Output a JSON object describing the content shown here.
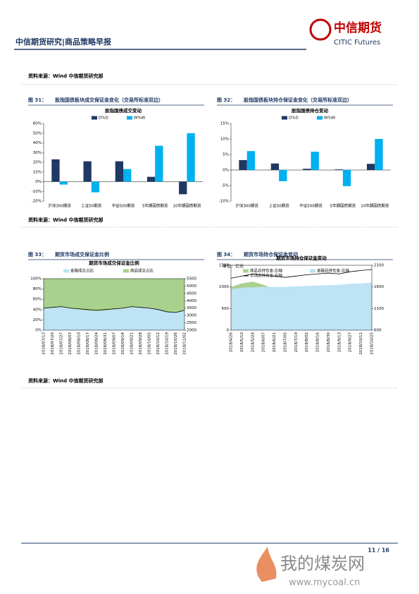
{
  "header": {
    "title": "中信期货研究|商品策略早报",
    "logo_cn": "中信期货",
    "logo_en": "CITIC Futures"
  },
  "sources": [
    "资料来源：Wind 中信期货研究部",
    "资料来源：Wind 中信期货研究部",
    "资料来源：Wind 中信期货研究部"
  ],
  "footer": {
    "page": "11 / 16"
  },
  "watermark": {
    "name": "我的煤炭网",
    "url": "www.mycoal.cn"
  },
  "chart_data": [
    {
      "type": "bar",
      "figure": "图 31：",
      "title": "股指国债板块成交保证金变化（交易所标准双边）",
      "subtitle": "股指国债成交变动",
      "categories": [
        "沪深300期货",
        "上证50期货",
        "中证500期货",
        "5年期国债期货",
        "10年期国债期货"
      ],
      "series": [
        {
          "name": "D%D",
          "color": "#1f3864",
          "values": [
            23,
            21,
            21,
            5,
            -13
          ]
        },
        {
          "name": "W%W",
          "color": "#00b0f0",
          "values": [
            -3,
            -11,
            13,
            37,
            50
          ]
        }
      ],
      "ylim": [
        -20,
        60
      ],
      "yticks": [
        {
          "value": -20,
          "label": "-20%"
        },
        {
          "value": -10,
          "label": "-10%"
        },
        {
          "value": 0,
          "label": "0%"
        },
        {
          "value": 10,
          "label": "10%"
        },
        {
          "value": 20,
          "label": "20%"
        },
        {
          "value": 30,
          "label": "30%"
        },
        {
          "value": 40,
          "label": "40%"
        },
        {
          "value": 50,
          "label": "50%"
        },
        {
          "value": 60,
          "label": "60%"
        }
      ]
    },
    {
      "type": "bar",
      "figure": "图 32：",
      "title": "股指国债板块持仓保证金变化（交易所标准双边）",
      "subtitle": "股指国债持仓变动",
      "categories": [
        "沪深300期货",
        "上证50期货",
        "中证500期货",
        "5年期国债期货",
        "10年期国债期货"
      ],
      "series": [
        {
          "name": "D%D",
          "color": "#1f3864",
          "values": [
            3.2,
            2.1,
            0.4,
            0.2,
            2.0
          ]
        },
        {
          "name": "W%W",
          "color": "#00b0f0",
          "values": [
            6.1,
            -3.6,
            5.9,
            -5.2,
            10.0
          ]
        }
      ],
      "ylim": [
        -10,
        15
      ],
      "yticks": [
        {
          "value": -10,
          "label": "-10%"
        },
        {
          "value": -5,
          "label": "-5%"
        },
        {
          "value": 0,
          "label": "0%"
        },
        {
          "value": 5,
          "label": "5%"
        },
        {
          "value": 10,
          "label": "10%"
        },
        {
          "value": 15,
          "label": "15%"
        }
      ]
    },
    {
      "type": "area",
      "figure": "图 33：",
      "title": "期货市场成交保证金比例",
      "subtitle": "期货市场成交保证金比例",
      "stacked": true,
      "categories": [
        "2018/07/13",
        "2018/07/20",
        "2018/07/27",
        "2018/08/03",
        "2018/08/10",
        "2018/08/17",
        "2018/08/24",
        "2018/08/31",
        "2018/09/07",
        "2018/09/14",
        "2018/09/21",
        "2018/09/28",
        "2018/10/05",
        "2018/10/12",
        "2018/10/19",
        "2018/10/26",
        "2018/11/02"
      ],
      "series": [
        {
          "name": "金融成交占比",
          "kind": "area",
          "color": "#bde3f5",
          "values": [
            42,
            44,
            45,
            42,
            40,
            38,
            37,
            38,
            40,
            42,
            45,
            44,
            43,
            40,
            35,
            34,
            38
          ]
        },
        {
          "name": "商品成交占比",
          "kind": "area",
          "color": "#a9d18e",
          "values": [
            58,
            56,
            55,
            58,
            60,
            62,
            63,
            62,
            60,
            58,
            55,
            56,
            57,
            60,
            65,
            66,
            62
          ]
        },
        {
          "kind": "line",
          "axis": "y2",
          "color": "#000000",
          "values": [
            3500,
            3550,
            3600,
            3500,
            3450,
            3400,
            3350,
            3400,
            3450,
            3500,
            3600,
            3550,
            3500,
            3400,
            3250,
            3200,
            3350
          ]
        }
      ],
      "ylim": [
        0,
        100
      ],
      "yticks": [
        {
          "value": 0,
          "label": "0%"
        },
        {
          "value": 20,
          "label": "20%"
        },
        {
          "value": 40,
          "label": "40%"
        },
        {
          "value": 60,
          "label": "60%"
        },
        {
          "value": 80,
          "label": "80%"
        },
        {
          "value": 100,
          "label": "100%"
        }
      ],
      "y2lim": [
        2000,
        5500
      ],
      "y2ticks": [
        2000,
        2500,
        3000,
        3500,
        4000,
        4500,
        5000,
        5500
      ]
    },
    {
      "type": "area",
      "figure": "图 34：",
      "title": "期货市场持仓保证金变动",
      "subtitle": "期货市场持仓保证金变动",
      "unit": "单位：亿元",
      "stacked": false,
      "categories": [
        "2018/4/26",
        "2018/5/10",
        "2018/5/24",
        "2018/6/07",
        "2018/6/21",
        "2018/7/05",
        "2018/7/19",
        "2018/8/02",
        "2018/8/16",
        "2018/8/30",
        "2018/9/13",
        "2018/9/27",
        "2018/10/11",
        "2018/10/25"
      ],
      "series": [
        {
          "name": "商品总持仓金:左轴",
          "kind": "area",
          "color": "#a9d18e",
          "values": [
            1000,
            1080,
            1120,
            1050,
            950,
            940,
            960,
            980,
            1000,
            1000,
            1010,
            1020,
            1050,
            1080
          ]
        },
        {
          "name": "金融总持仓金:左轴",
          "kind": "area",
          "color": "#bde3f5",
          "values": [
            950,
            980,
            990,
            1000,
            1000,
            1000,
            1010,
            1020,
            1030,
            1040,
            1050,
            1070,
            1080,
            1100
          ]
        },
        {
          "name": "市场总持仓金:右轴",
          "kind": "line",
          "axis": "y2",
          "color": "#000000",
          "values": [
            1800,
            1850,
            1900,
            1870,
            1850,
            1820,
            1850,
            1880,
            1900,
            1920,
            1900,
            1950,
            1980,
            2000
          ]
        }
      ],
      "ylim": [
        0,
        1500
      ],
      "yticks": [
        0,
        500,
        1000,
        1500
      ],
      "y2lim": [
        600,
        2100
      ],
      "y2ticks": [
        600,
        1100,
        1600,
        2100
      ]
    }
  ]
}
